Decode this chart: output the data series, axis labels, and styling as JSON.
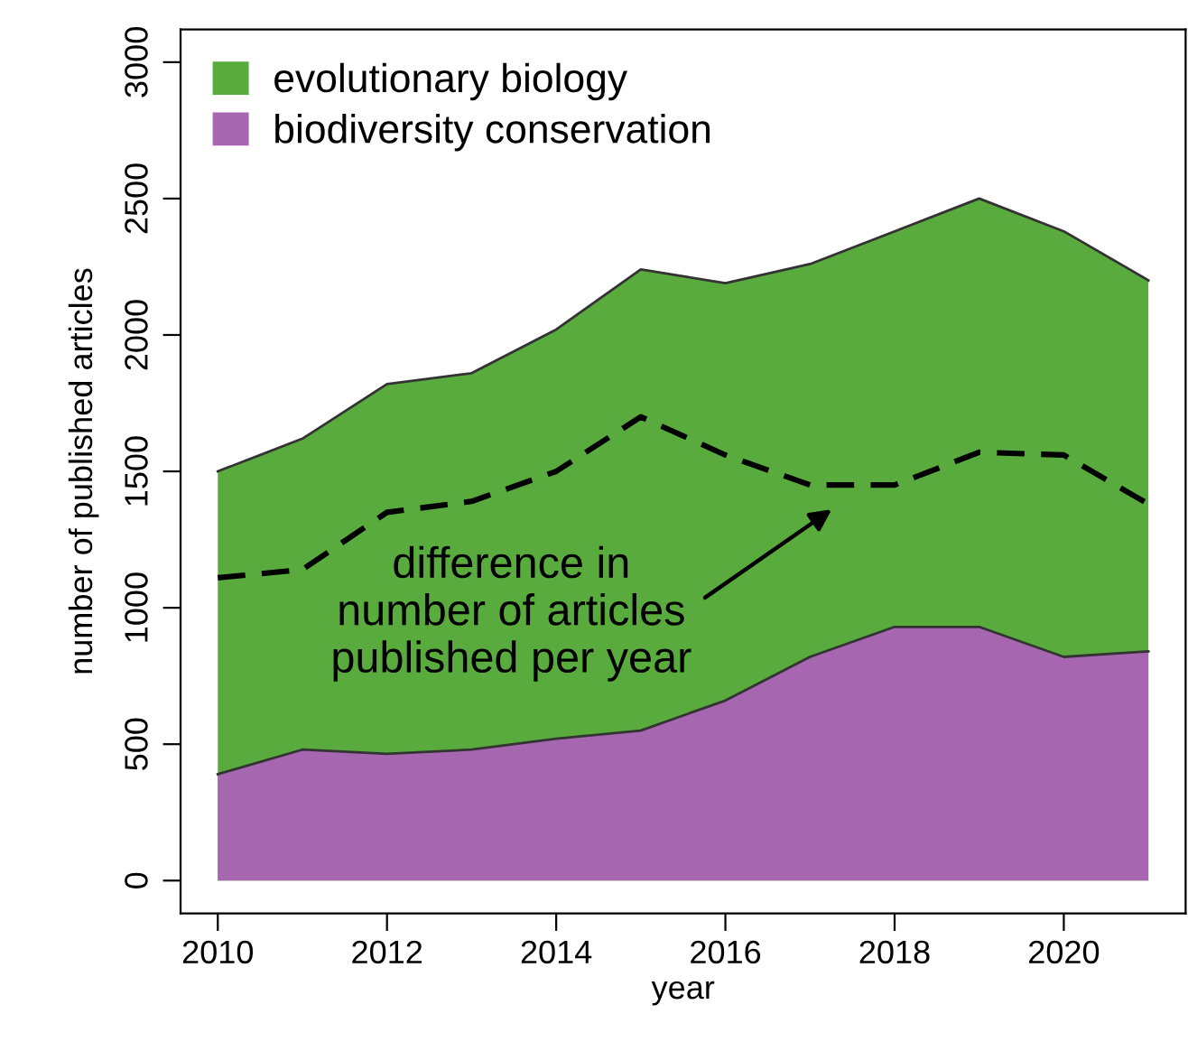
{
  "chart_data": {
    "type": "area",
    "xlabel": "year",
    "ylabel": "number of published articles",
    "x": [
      2010,
      2011,
      2012,
      2013,
      2014,
      2015,
      2016,
      2017,
      2018,
      2019,
      2020,
      2021
    ],
    "series": [
      {
        "name": "evolutionary biology",
        "color": "#5aab3e",
        "values": [
          1500,
          1620,
          1820,
          1860,
          2020,
          2240,
          2190,
          2260,
          2380,
          2500,
          2380,
          2200
        ]
      },
      {
        "name": "biodiversity conservation",
        "color": "#a666b0",
        "values": [
          390,
          480,
          465,
          480,
          520,
          550,
          660,
          820,
          930,
          930,
          820,
          840
        ]
      },
      {
        "type": "line",
        "color": "#000000",
        "line_style": "dashed",
        "values": [
          1110,
          1140,
          1350,
          1390,
          1500,
          1700,
          1560,
          1450,
          1450,
          1570,
          1560,
          1380
        ]
      }
    ],
    "xlim": [
      2009.56,
      2021.44
    ],
    "ylim": [
      -120,
      3120
    ],
    "xticks": [
      2010,
      2012,
      2014,
      2016,
      2018,
      2020
    ],
    "yticks": [
      0,
      500,
      1000,
      1500,
      2000,
      2500,
      3000
    ],
    "grid": false,
    "legend": "top left",
    "annotations": [
      "difference in\nnumber of articles\npublished per year"
    ]
  }
}
